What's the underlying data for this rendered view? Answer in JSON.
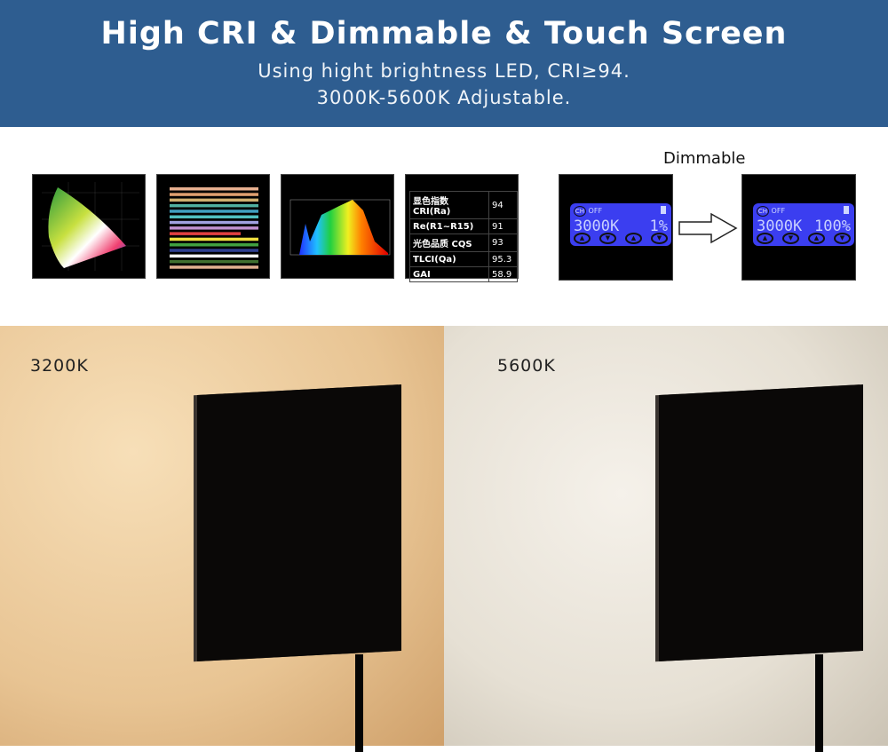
{
  "header": {
    "title": "High CRI & Dimmable & Touch Screen",
    "subtitle_line1": "Using hight brightness LED, CRI≥94.",
    "subtitle_line2": "3000K-5600K Adjustable."
  },
  "cri_table": [
    {
      "label": "显色指数 CRI(Ra)",
      "value": "94"
    },
    {
      "label": "Re(R1~R15)",
      "value": "91"
    },
    {
      "label": "光色品质 CQS",
      "value": "93"
    },
    {
      "label": "TLCI(Qa)",
      "value": "95.3"
    },
    {
      "label": "GAI",
      "value": "58.9"
    }
  ],
  "dimmable": {
    "label": "Dimmable",
    "before": {
      "ch": "CH",
      "status": "OFF",
      "temp": "3000K",
      "level": "1%"
    },
    "after": {
      "ch": "CH",
      "status": "OFF",
      "temp": "3000K",
      "level": "100%"
    }
  },
  "photos": {
    "left_label": "3200K",
    "right_label": "5600K"
  },
  "colors": {
    "banner": "#2e5d90",
    "lcd": "#3b3ef0"
  }
}
